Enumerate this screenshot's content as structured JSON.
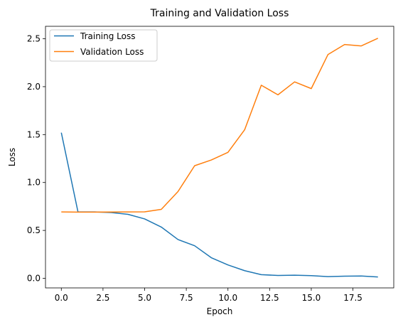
{
  "chart_data": {
    "type": "line",
    "title": "Training and Validation Loss",
    "xlabel": "Epoch",
    "ylabel": "Loss",
    "xlim": [
      -0.95,
      19.95
    ],
    "ylim": [
      -0.1,
      2.63
    ],
    "xticks": [
      0.0,
      2.5,
      5.0,
      7.5,
      10.0,
      12.5,
      15.0,
      17.5
    ],
    "xtick_labels": [
      "0.0",
      "2.5",
      "5.0",
      "7.5",
      "10.0",
      "12.5",
      "15.0",
      "17.5"
    ],
    "yticks": [
      0.0,
      0.5,
      1.0,
      1.5,
      2.0,
      2.5
    ],
    "ytick_labels": [
      "0.0",
      "0.5",
      "1.0",
      "1.5",
      "2.0",
      "2.5"
    ],
    "grid": false,
    "legend_position": "top-left",
    "x": [
      0,
      1,
      2,
      3,
      4,
      5,
      6,
      7,
      8,
      9,
      10,
      11,
      12,
      13,
      14,
      15,
      16,
      17,
      18,
      19
    ],
    "series": [
      {
        "name": "Training Loss",
        "color": "#1f77b4",
        "values": [
          1.52,
          0.693,
          0.693,
          0.686,
          0.668,
          0.62,
          0.535,
          0.405,
          0.34,
          0.215,
          0.14,
          0.08,
          0.038,
          0.03,
          0.033,
          0.028,
          0.018,
          0.022,
          0.024,
          0.014
        ]
      },
      {
        "name": "Validation Loss",
        "color": "#ff7f0e",
        "values": [
          0.693,
          0.691,
          0.691,
          0.692,
          0.693,
          0.694,
          0.72,
          0.905,
          1.175,
          1.235,
          1.315,
          1.55,
          2.015,
          1.915,
          2.05,
          1.98,
          2.335,
          2.44,
          2.425,
          2.505
        ]
      }
    ]
  }
}
